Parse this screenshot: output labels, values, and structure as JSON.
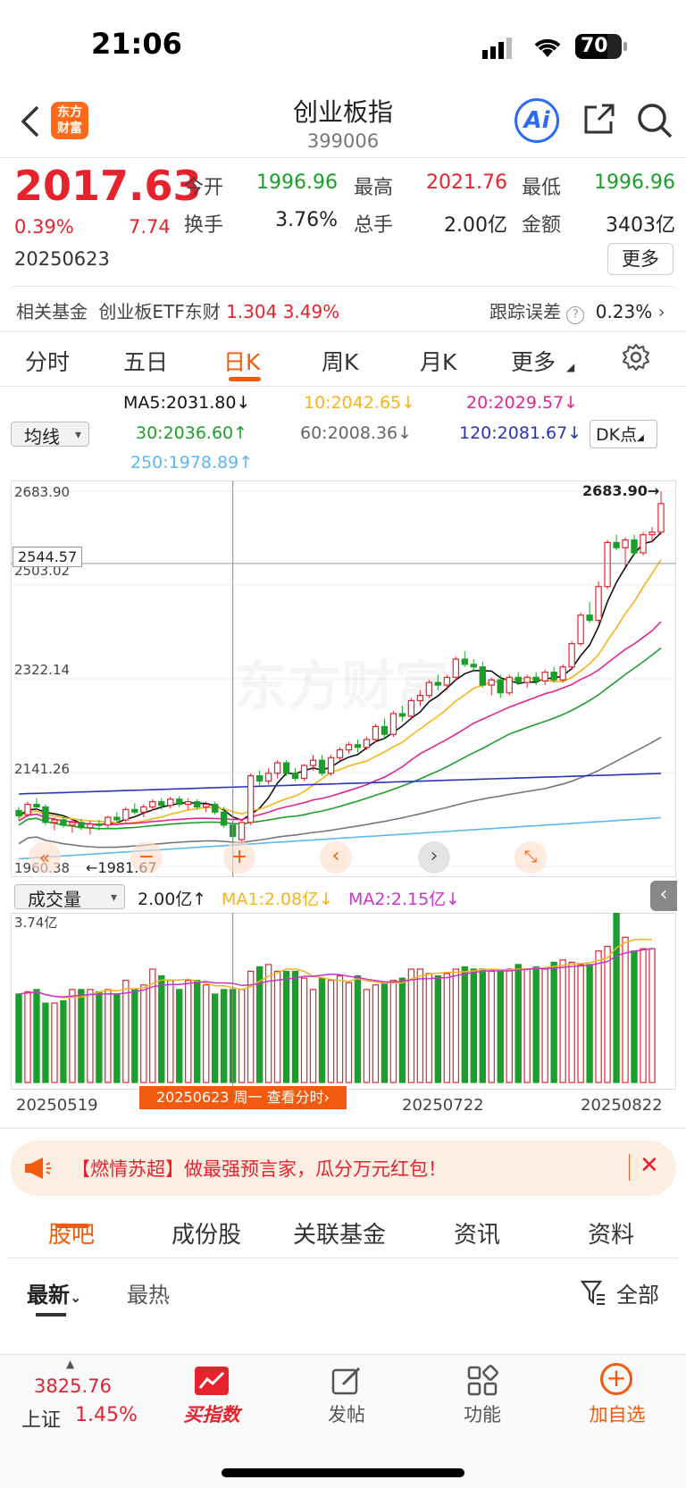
{
  "status_bar": {
    "time": "21:06",
    "battery": "70"
  },
  "header": {
    "title": "创业板指",
    "code": "399006",
    "logo_text_1": "东方",
    "logo_text_2": "财富",
    "ai_label": "Ai"
  },
  "quote": {
    "price": "2017.63",
    "change_pct": "0.39%",
    "change_abs": "7.74",
    "date": "20250623",
    "open_label": "今开",
    "open": "1996.96",
    "high_label": "最高",
    "high": "2021.76",
    "low_label": "最低",
    "low": "1996.96",
    "turnover_label": "换手",
    "turnover": "3.76%",
    "volume_label": "总手",
    "volume": "2.00亿",
    "amount_label": "金额",
    "amount": "3403亿",
    "more_label": "更多"
  },
  "fund": {
    "label": "相关基金",
    "name": "创业板ETF东财",
    "price": "1.304",
    "pct": "3.49%",
    "tracking_label": "跟踪误差",
    "tracking_value": "0.23%"
  },
  "tabs": [
    {
      "label": "分时"
    },
    {
      "label": "五日"
    },
    {
      "label": "日K"
    },
    {
      "label": "周K"
    },
    {
      "label": "月K"
    },
    {
      "label": "更多"
    }
  ],
  "ma": {
    "selector": "均线",
    "ma5": "MA5:2031.80↓",
    "ma10": "10:2042.65↓",
    "ma20": "20:2029.57↓",
    "ma30": "30:2036.60↑",
    "ma60": "60:2008.36↓",
    "ma120": "120:2081.67↓",
    "ma250": "250:1978.89↑",
    "dk": "DK点"
  },
  "price_chart": {
    "axis_top": "2683.90",
    "axis_l2": "2503.02",
    "axis_l3": "2322.14",
    "axis_l4": "2141.26",
    "axis_bottom": "1960.38",
    "cursor_price": "2544.57",
    "max_marker": "2683.90→",
    "min_marker": "←1981.67",
    "watermark": "东方财富"
  },
  "volume_panel": {
    "selector": "成交量",
    "vol": "2.00亿↑",
    "ma1": "MA1:2.08亿↓",
    "ma2": "MA2:2.15亿↓",
    "axis_top": "3.74亿"
  },
  "dates": {
    "d1": "20250519",
    "d2": "20250722",
    "d3": "20250822",
    "cursor": "20250623 周一 查看分时"
  },
  "banner": {
    "text": "【燃情苏超】做最强预言家，瓜分万元红包！"
  },
  "subtabs": [
    {
      "label": "股吧"
    },
    {
      "label": "成份股"
    },
    {
      "label": "关联基金"
    },
    {
      "label": "资讯"
    },
    {
      "label": "资料"
    }
  ],
  "filters": {
    "latest": "最新",
    "hot": "最热",
    "all": "全部"
  },
  "bottom_nav": {
    "sh_value": "3825.76",
    "sh_label": "上证",
    "sh_pct": "1.45%",
    "buy_index": "买指数",
    "post": "发帖",
    "function": "功能",
    "add": "加自选"
  },
  "chart_data": {
    "type": "candlestick",
    "candles": [
      {
        "o": 2068,
        "h": 2075,
        "l": 2050,
        "c": 2058
      },
      {
        "o": 2060,
        "h": 2085,
        "l": 2055,
        "c": 2080
      },
      {
        "o": 2080,
        "h": 2092,
        "l": 2070,
        "c": 2075
      },
      {
        "o": 2075,
        "h": 2080,
        "l": 2040,
        "c": 2045
      },
      {
        "o": 2045,
        "h": 2055,
        "l": 2030,
        "c": 2050
      },
      {
        "o": 2050,
        "h": 2060,
        "l": 2035,
        "c": 2040
      },
      {
        "o": 2040,
        "h": 2050,
        "l": 2025,
        "c": 2045
      },
      {
        "o": 2045,
        "h": 2052,
        "l": 2030,
        "c": 2035
      },
      {
        "o": 2035,
        "h": 2048,
        "l": 2022,
        "c": 2042
      },
      {
        "o": 2042,
        "h": 2050,
        "l": 2030,
        "c": 2040
      },
      {
        "o": 2040,
        "h": 2058,
        "l": 2035,
        "c": 2055
      },
      {
        "o": 2055,
        "h": 2065,
        "l": 2045,
        "c": 2050
      },
      {
        "o": 2050,
        "h": 2075,
        "l": 2045,
        "c": 2070
      },
      {
        "o": 2070,
        "h": 2082,
        "l": 2060,
        "c": 2065
      },
      {
        "o": 2065,
        "h": 2080,
        "l": 2055,
        "c": 2075
      },
      {
        "o": 2075,
        "h": 2090,
        "l": 2068,
        "c": 2085
      },
      {
        "o": 2085,
        "h": 2092,
        "l": 2070,
        "c": 2078
      },
      {
        "o": 2078,
        "h": 2095,
        "l": 2072,
        "c": 2090
      },
      {
        "o": 2090,
        "h": 2096,
        "l": 2075,
        "c": 2080
      },
      {
        "o": 2080,
        "h": 2092,
        "l": 2070,
        "c": 2085
      },
      {
        "o": 2085,
        "h": 2090,
        "l": 2070,
        "c": 2075
      },
      {
        "o": 2075,
        "h": 2085,
        "l": 2065,
        "c": 2080
      },
      {
        "o": 2080,
        "h": 2085,
        "l": 2060,
        "c": 2065
      },
      {
        "o": 2065,
        "h": 2075,
        "l": 2035,
        "c": 2040
      },
      {
        "o": 2040,
        "h": 2048,
        "l": 2000,
        "c": 2018
      },
      {
        "o": 2012,
        "h": 2050,
        "l": 2005,
        "c": 2045
      },
      {
        "o": 2045,
        "h": 2140,
        "l": 2040,
        "c": 2135
      },
      {
        "o": 2135,
        "h": 2145,
        "l": 2115,
        "c": 2125
      },
      {
        "o": 2125,
        "h": 2150,
        "l": 2118,
        "c": 2140
      },
      {
        "o": 2140,
        "h": 2165,
        "l": 2130,
        "c": 2160
      },
      {
        "o": 2160,
        "h": 2165,
        "l": 2135,
        "c": 2140
      },
      {
        "o": 2140,
        "h": 2150,
        "l": 2125,
        "c": 2130
      },
      {
        "o": 2130,
        "h": 2158,
        "l": 2125,
        "c": 2155
      },
      {
        "o": 2155,
        "h": 2175,
        "l": 2145,
        "c": 2165
      },
      {
        "o": 2165,
        "h": 2175,
        "l": 2135,
        "c": 2140
      },
      {
        "o": 2140,
        "h": 2175,
        "l": 2135,
        "c": 2170
      },
      {
        "o": 2170,
        "h": 2190,
        "l": 2165,
        "c": 2185
      },
      {
        "o": 2185,
        "h": 2200,
        "l": 2178,
        "c": 2195
      },
      {
        "o": 2195,
        "h": 2205,
        "l": 2180,
        "c": 2190
      },
      {
        "o": 2190,
        "h": 2210,
        "l": 2185,
        "c": 2205
      },
      {
        "o": 2205,
        "h": 2235,
        "l": 2200,
        "c": 2230
      },
      {
        "o": 2230,
        "h": 2245,
        "l": 2205,
        "c": 2215
      },
      {
        "o": 2215,
        "h": 2260,
        "l": 2210,
        "c": 2255
      },
      {
        "o": 2255,
        "h": 2270,
        "l": 2240,
        "c": 2250
      },
      {
        "o": 2250,
        "h": 2285,
        "l": 2245,
        "c": 2280
      },
      {
        "o": 2280,
        "h": 2300,
        "l": 2270,
        "c": 2290
      },
      {
        "o": 2290,
        "h": 2320,
        "l": 2285,
        "c": 2315
      },
      {
        "o": 2315,
        "h": 2330,
        "l": 2300,
        "c": 2310
      },
      {
        "o": 2310,
        "h": 2330,
        "l": 2300,
        "c": 2325
      },
      {
        "o": 2325,
        "h": 2365,
        "l": 2320,
        "c": 2360
      },
      {
        "o": 2360,
        "h": 2375,
        "l": 2345,
        "c": 2350
      },
      {
        "o": 2350,
        "h": 2360,
        "l": 2335,
        "c": 2345
      },
      {
        "o": 2345,
        "h": 2355,
        "l": 2305,
        "c": 2310
      },
      {
        "o": 2310,
        "h": 2325,
        "l": 2290,
        "c": 2320
      },
      {
        "o": 2320,
        "h": 2330,
        "l": 2285,
        "c": 2295
      },
      {
        "o": 2295,
        "h": 2330,
        "l": 2290,
        "c": 2325
      },
      {
        "o": 2325,
        "h": 2335,
        "l": 2310,
        "c": 2315
      },
      {
        "o": 2315,
        "h": 2330,
        "l": 2305,
        "c": 2325
      },
      {
        "o": 2325,
        "h": 2335,
        "l": 2310,
        "c": 2318
      },
      {
        "o": 2318,
        "h": 2340,
        "l": 2310,
        "c": 2335
      },
      {
        "o": 2335,
        "h": 2345,
        "l": 2315,
        "c": 2320
      },
      {
        "o": 2320,
        "h": 2350,
        "l": 2315,
        "c": 2345
      },
      {
        "o": 2345,
        "h": 2395,
        "l": 2340,
        "c": 2390
      },
      {
        "o": 2390,
        "h": 2450,
        "l": 2385,
        "c": 2445
      },
      {
        "o": 2445,
        "h": 2470,
        "l": 2430,
        "c": 2435
      },
      {
        "o": 2435,
        "h": 2510,
        "l": 2430,
        "c": 2500
      },
      {
        "o": 2500,
        "h": 2590,
        "l": 2495,
        "c": 2585
      },
      {
        "o": 2585,
        "h": 2600,
        "l": 2570,
        "c": 2575
      },
      {
        "o": 2575,
        "h": 2595,
        "l": 2540,
        "c": 2590
      },
      {
        "o": 2590,
        "h": 2600,
        "l": 2560,
        "c": 2565
      },
      {
        "o": 2565,
        "h": 2605,
        "l": 2560,
        "c": 2600
      },
      {
        "o": 2600,
        "h": 2615,
        "l": 2585,
        "c": 2605
      },
      {
        "o": 2605,
        "h": 2683.9,
        "l": 2600,
        "c": 2660
      }
    ],
    "volumes": [
      1.95,
      2.0,
      2.05,
      1.75,
      1.75,
      1.8,
      2.05,
      2.05,
      2.05,
      2.0,
      2.05,
      1.95,
      2.25,
      2.05,
      2.15,
      2.5,
      2.35,
      2.25,
      2.05,
      2.25,
      2.25,
      2.15,
      1.95,
      2.05,
      2.05,
      2.05,
      2.45,
      2.55,
      2.6,
      2.45,
      2.45,
      2.45,
      2.3,
      2.05,
      2.3,
      2.25,
      2.35,
      2.2,
      2.35,
      2.05,
      2.15,
      2.2,
      2.25,
      2.3,
      2.5,
      2.5,
      2.4,
      2.35,
      2.4,
      2.5,
      2.55,
      2.5,
      2.5,
      2.45,
      2.45,
      2.5,
      2.6,
      2.5,
      2.55,
      2.5,
      2.65,
      2.7,
      2.65,
      2.6,
      2.6,
      2.9,
      3.0,
      3.74,
      3.2,
      2.9,
      2.95,
      2.95
    ],
    "y_axis": {
      "min": 1960.38,
      "max": 2683.9,
      "ticks": [
        1960.38,
        2141.26,
        2322.14,
        2503.02,
        2683.9
      ]
    },
    "volume_axis_max": 3.74,
    "x_labels": [
      "20250519",
      "20250722",
      "20250822"
    ],
    "series": [
      {
        "name": "MA5",
        "color": "#111111"
      },
      {
        "name": "10",
        "color": "#f5b41b"
      },
      {
        "name": "20",
        "color": "#e0258f"
      },
      {
        "name": "30",
        "color": "#1e9e2d"
      },
      {
        "name": "60",
        "color": "#777777"
      },
      {
        "name": "120",
        "color": "#2835b8"
      },
      {
        "name": "250",
        "color": "#5cb8f0"
      }
    ],
    "volume_series": [
      {
        "name": "MA1",
        "color": "#f5b41b"
      },
      {
        "name": "MA2",
        "color": "#cc33cc"
      }
    ]
  }
}
